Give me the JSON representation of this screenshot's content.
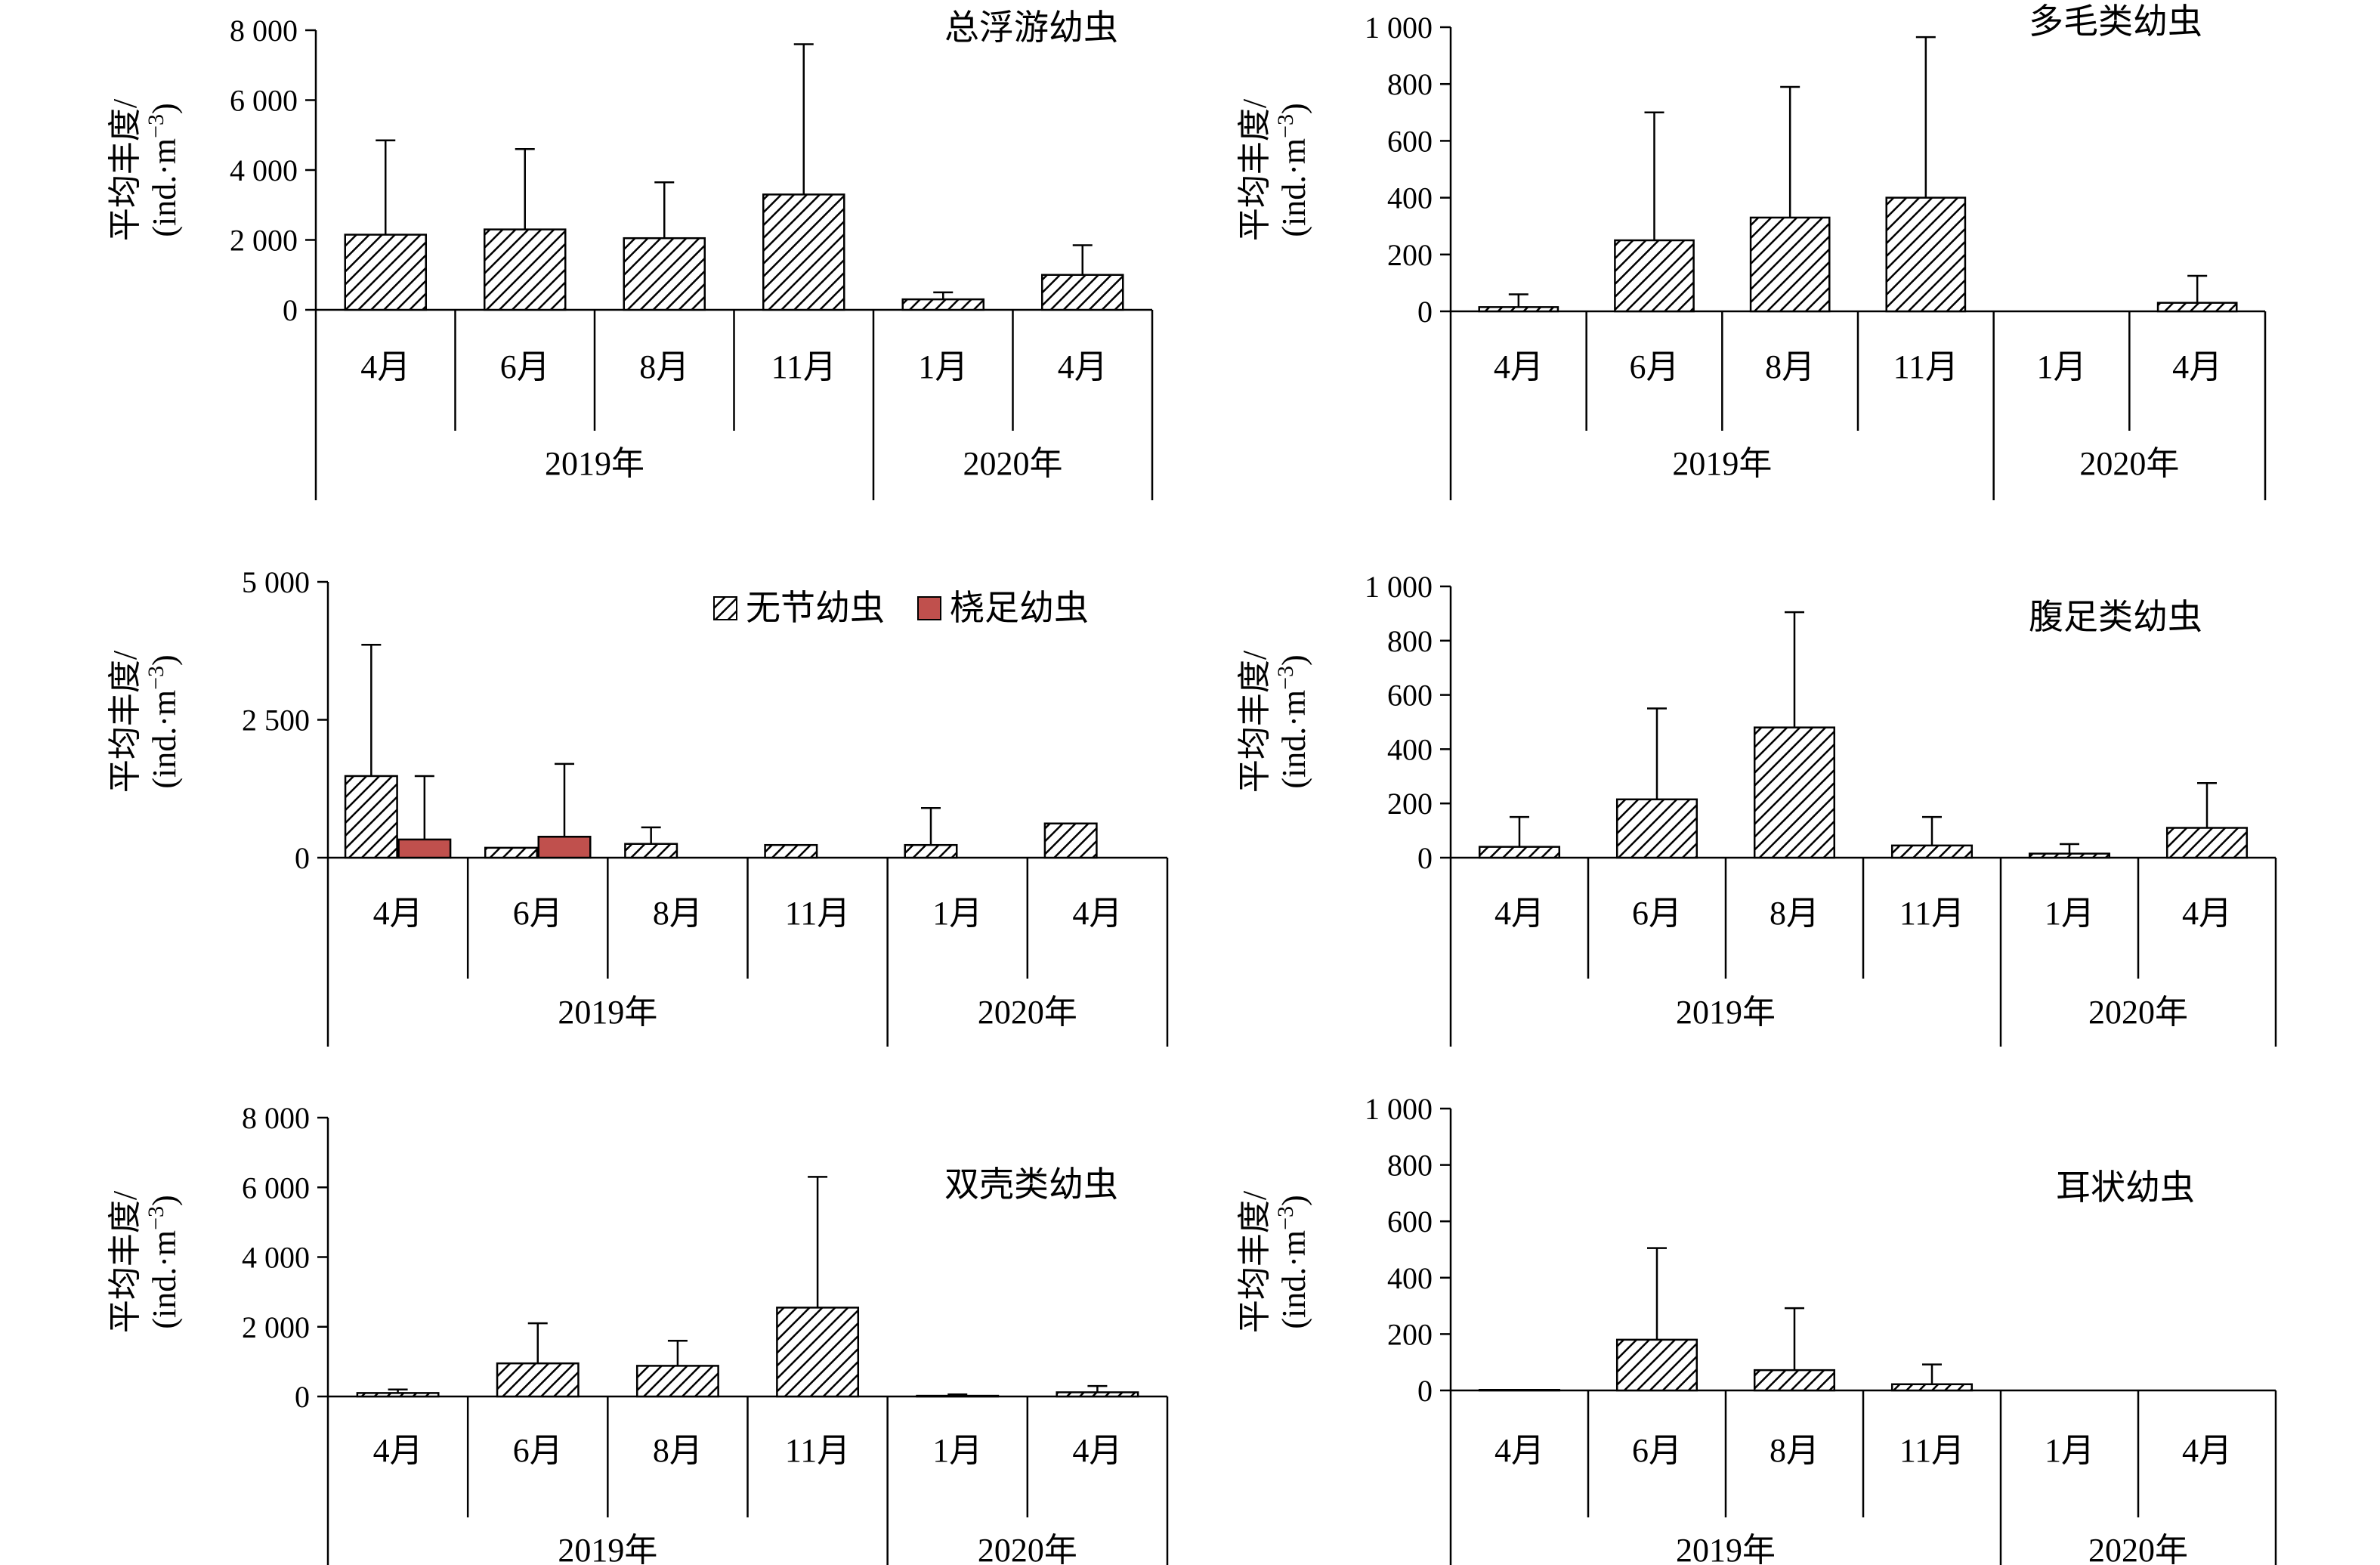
{
  "colors": {
    "hatch_fill": "#ffffff",
    "hatch_stroke": "#000000",
    "copepodite": "#c0504d"
  },
  "chart_data": [
    {
      "type": "bar",
      "title": "总浮游幼虫",
      "ylabel_line1": "平均丰度/",
      "ylabel_line2": "(ind.·m",
      "ylabel_sup": "−3",
      "ylabel_close": ")",
      "ylim": [
        0,
        8000
      ],
      "yticks": [
        "0",
        "2 000",
        "4 000",
        "6 000",
        "8 000"
      ],
      "ytick_values": [
        0,
        2000,
        4000,
        6000,
        8000
      ],
      "categories": [
        "4月",
        "6月",
        "8月",
        "11月",
        "1月",
        "4月"
      ],
      "year_groups": [
        {
          "label": "2019年",
          "count": 4
        },
        {
          "label": "2020年",
          "count": 2
        }
      ],
      "series": [
        {
          "style": "hatch",
          "values": [
            2150,
            2300,
            2050,
            3300,
            300,
            1000
          ],
          "errors": [
            2700,
            2300,
            1600,
            4300,
            200,
            850
          ]
        }
      ],
      "grid": false
    },
    {
      "type": "bar",
      "title": "多毛类幼虫",
      "ylabel_line1": "平均丰度/",
      "ylabel_line2": "(ind.·m",
      "ylabel_sup": "−3",
      "ylabel_close": ")",
      "ylim": [
        0,
        1000
      ],
      "yticks": [
        "0",
        "200",
        "400",
        "600",
        "800",
        "1 000"
      ],
      "ytick_values": [
        0,
        200,
        400,
        600,
        800,
        1000
      ],
      "categories": [
        "4月",
        "6月",
        "8月",
        "11月",
        "1月",
        "4月"
      ],
      "year_groups": [
        {
          "label": "2019年",
          "count": 4
        },
        {
          "label": "2020年",
          "count": 2
        }
      ],
      "series": [
        {
          "style": "hatch",
          "values": [
            15,
            250,
            330,
            400,
            0,
            30
          ],
          "errors": [
            45,
            450,
            460,
            565,
            0,
            95
          ]
        }
      ],
      "grid": false
    },
    {
      "type": "bar",
      "title": "",
      "ylabel_line1": "平均丰度/",
      "ylabel_line2": "(ind.·m",
      "ylabel_sup": "−3",
      "ylabel_close": ")",
      "ylim": [
        0,
        5000
      ],
      "yticks": [
        "0",
        "2 500",
        "5 000"
      ],
      "ytick_values": [
        0,
        2500,
        5000
      ],
      "categories": [
        "4月",
        "6月",
        "8月",
        "11月",
        "1月",
        "4月"
      ],
      "year_groups": [
        {
          "label": "2019年",
          "count": 4
        },
        {
          "label": "2020年",
          "count": 2
        }
      ],
      "legend": "top-right",
      "series": [
        {
          "name": "无节幼虫",
          "style": "hatch",
          "values": [
            1480,
            180,
            250,
            230,
            230,
            620
          ],
          "errors": [
            2380,
            0,
            300,
            0,
            670,
            0
          ]
        },
        {
          "name": "桡足幼虫",
          "style": "solid",
          "values": [
            330,
            380,
            0,
            0,
            0,
            0
          ],
          "errors": [
            1150,
            1320,
            0,
            0,
            0,
            0
          ]
        }
      ],
      "grid": false
    },
    {
      "type": "bar",
      "title": "腹足类幼虫",
      "ylabel_line1": "平均丰度/",
      "ylabel_line2": "(ind.·m",
      "ylabel_sup": "−3",
      "ylabel_close": ")",
      "ylim": [
        0,
        1000
      ],
      "yticks": [
        "0",
        "200",
        "400",
        "600",
        "800",
        "1 000"
      ],
      "ytick_values": [
        0,
        200,
        400,
        600,
        800,
        1000
      ],
      "categories": [
        "4月",
        "6月",
        "8月",
        "11月",
        "1月",
        "4月"
      ],
      "year_groups": [
        {
          "label": "2019年",
          "count": 4
        },
        {
          "label": "2020年",
          "count": 2
        }
      ],
      "series": [
        {
          "style": "hatch",
          "values": [
            40,
            215,
            480,
            45,
            15,
            110
          ],
          "errors": [
            110,
            335,
            425,
            105,
            35,
            165
          ]
        }
      ],
      "grid": false
    },
    {
      "type": "bar",
      "title": "双壳类幼虫",
      "ylabel_line1": "平均丰度/",
      "ylabel_line2": "(ind.·m",
      "ylabel_sup": "−3",
      "ylabel_close": ")",
      "ylim": [
        0,
        8000
      ],
      "yticks": [
        "0",
        "2 000",
        "4 000",
        "6 000",
        "8 000"
      ],
      "ytick_values": [
        0,
        2000,
        4000,
        6000,
        8000
      ],
      "categories": [
        "4月",
        "6月",
        "8月",
        "11月",
        "1月",
        "4月"
      ],
      "year_groups": [
        {
          "label": "2019年",
          "count": 4
        },
        {
          "label": "2020年",
          "count": 2
        }
      ],
      "series": [
        {
          "style": "hatch",
          "values": [
            100,
            950,
            880,
            2550,
            20,
            120
          ],
          "errors": [
            100,
            1150,
            720,
            3750,
            40,
            180
          ]
        }
      ],
      "grid": false
    },
    {
      "type": "bar",
      "title": "耳状幼虫",
      "ylabel_line1": "平均丰度/",
      "ylabel_line2": "(ind.·m",
      "ylabel_sup": "−3",
      "ylabel_close": ")",
      "ylim": [
        0,
        1000
      ],
      "yticks": [
        "0",
        "200",
        "400",
        "600",
        "800",
        "1 000"
      ],
      "ytick_values": [
        0,
        200,
        400,
        600,
        800,
        1000
      ],
      "categories": [
        "4月",
        "6月",
        "8月",
        "11月",
        "1月",
        "4月"
      ],
      "year_groups": [
        {
          "label": "2019年",
          "count": 4
        },
        {
          "label": "2020年",
          "count": 2
        }
      ],
      "series": [
        {
          "style": "hatch",
          "values": [
            2,
            180,
            72,
            22,
            0,
            0
          ],
          "errors": [
            0,
            325,
            220,
            70,
            0,
            0
          ]
        }
      ],
      "grid": false
    }
  ]
}
